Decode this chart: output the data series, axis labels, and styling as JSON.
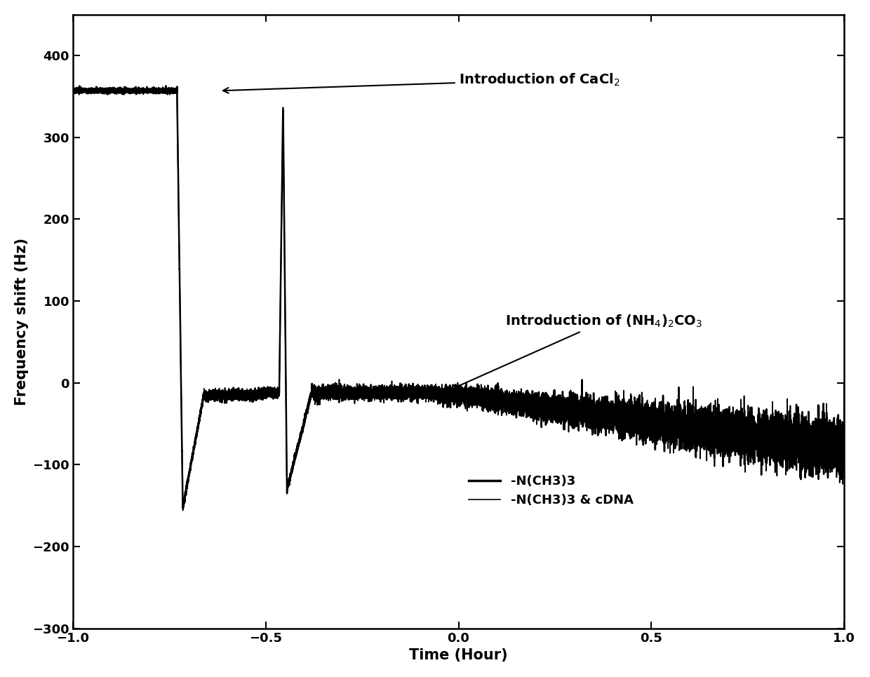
{
  "xlim": [
    -1.0,
    1.0
  ],
  "ylim": [
    -300,
    450
  ],
  "yticks": [
    -300,
    -200,
    -100,
    0,
    100,
    200,
    300,
    400
  ],
  "xticks": [
    -1.0,
    -0.5,
    0.0,
    0.5,
    1.0
  ],
  "xlabel": "Time (Hour)",
  "ylabel": "Frequency shift (Hz)",
  "line_color": "#000000",
  "annotation_cacl2_text": "Introduction of CaCl$_2$",
  "annotation_nh4_text": "Introduction of (NH$_4$)$_2$CO$_3$",
  "legend_line1": "-N(CH3)3",
  "legend_line2": "-N(CH3)3 & cDNA",
  "background_color": "#ffffff",
  "label_fontsize": 15,
  "tick_fontsize": 13,
  "annot_fontsize": 14
}
